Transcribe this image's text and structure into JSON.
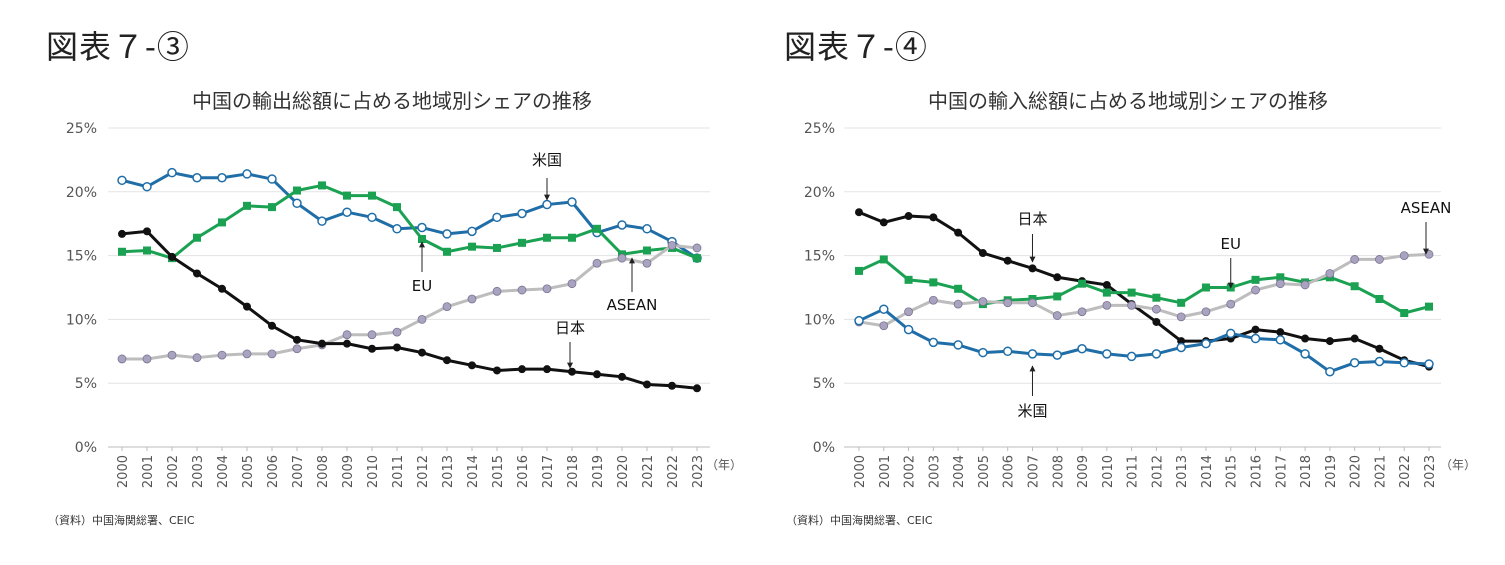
{
  "panels": [
    {
      "figure_label": "図表７-③",
      "source": "（資料）中国海関総署、CEIC",
      "chart_data": {
        "type": "line",
        "title": "中国の輸出総額に占める地域別シェアの推移",
        "x": [
          "2000",
          "2001",
          "2002",
          "2003",
          "2004",
          "2005",
          "2006",
          "2007",
          "2008",
          "2009",
          "2010",
          "2011",
          "2012",
          "2013",
          "2014",
          "2015",
          "2016",
          "2017",
          "2018",
          "2019",
          "2020",
          "2021",
          "2022",
          "2023"
        ],
        "x_unit": "（年）",
        "yticks": [
          "0%",
          "5%",
          "10%",
          "15%",
          "20%",
          "25%"
        ],
        "ylim": [
          0,
          25
        ],
        "grid": true,
        "series": [
          {
            "name": "米国",
            "color": "#1f6ea8",
            "marker": "circle-open",
            "values": [
              20.9,
              20.4,
              21.5,
              21.1,
              21.1,
              21.4,
              21.0,
              19.1,
              17.7,
              18.4,
              18.0,
              17.1,
              17.2,
              16.7,
              16.9,
              18.0,
              18.3,
              19.0,
              19.2,
              16.8,
              17.4,
              17.1,
              16.1,
              14.8
            ]
          },
          {
            "name": "EU",
            "color": "#1aa152",
            "marker": "square",
            "values": [
              15.3,
              15.4,
              14.8,
              16.4,
              17.6,
              18.9,
              18.8,
              20.1,
              20.5,
              19.7,
              19.7,
              18.8,
              16.3,
              15.3,
              15.7,
              15.6,
              16.0,
              16.4,
              16.4,
              17.1,
              15.1,
              15.4,
              15.6,
              14.8
            ]
          },
          {
            "name": "ASEAN",
            "color": "#bdbdbd",
            "marker": "circle-gray",
            "values": [
              6.9,
              6.9,
              7.2,
              7.0,
              7.2,
              7.3,
              7.3,
              7.7,
              8.0,
              8.8,
              8.8,
              9.0,
              10.0,
              11.0,
              11.6,
              12.2,
              12.3,
              12.4,
              12.8,
              14.4,
              14.8,
              14.4,
              15.8,
              15.6
            ]
          },
          {
            "name": "日本",
            "color": "#111111",
            "marker": "circle-filled",
            "values": [
              16.7,
              16.9,
              14.9,
              13.6,
              12.4,
              11.0,
              9.5,
              8.4,
              8.1,
              8.1,
              7.7,
              7.8,
              7.4,
              6.8,
              6.4,
              6.0,
              6.1,
              6.1,
              5.9,
              5.7,
              5.5,
              4.9,
              4.8,
              4.6
            ]
          }
        ],
        "annotations": [
          {
            "text": "米国",
            "year": "2017",
            "value": 19.0,
            "direction": "down"
          },
          {
            "text": "EU",
            "year": "2012",
            "value": 16.3,
            "direction": "up"
          },
          {
            "text": "ASEAN",
            "year": "2020",
            "value": 14.8,
            "direction": "up"
          },
          {
            "text": "日本",
            "year": "2018",
            "value": 5.9,
            "direction": "down"
          }
        ]
      }
    },
    {
      "figure_label": "図表７-④",
      "source": "（資料）中国海関総署、CEIC",
      "chart_data": {
        "type": "line",
        "title": "中国の輸入総額に占める地域別シェアの推移",
        "x": [
          "2000",
          "2001",
          "2002",
          "2003",
          "2004",
          "2005",
          "2006",
          "2007",
          "2008",
          "2009",
          "2010",
          "2011",
          "2012",
          "2013",
          "2014",
          "2015",
          "2016",
          "2017",
          "2018",
          "2019",
          "2020",
          "2021",
          "2022",
          "2023"
        ],
        "x_unit": "（年）",
        "yticks": [
          "0%",
          "5%",
          "10%",
          "15%",
          "20%",
          "25%"
        ],
        "ylim": [
          0,
          25
        ],
        "grid": true,
        "series": [
          {
            "name": "日本",
            "color": "#111111",
            "marker": "circle-filled",
            "values": [
              18.4,
              17.6,
              18.1,
              18.0,
              16.8,
              15.2,
              14.6,
              14.0,
              13.3,
              13.0,
              12.7,
              11.2,
              9.8,
              8.3,
              8.3,
              8.5,
              9.2,
              9.0,
              8.5,
              8.3,
              8.5,
              7.7,
              6.8,
              6.3
            ]
          },
          {
            "name": "EU",
            "color": "#1aa152",
            "marker": "square",
            "values": [
              13.8,
              14.7,
              13.1,
              12.9,
              12.4,
              11.2,
              11.5,
              11.6,
              11.8,
              12.8,
              12.1,
              12.1,
              11.7,
              11.3,
              12.5,
              12.5,
              13.1,
              13.3,
              12.9,
              13.3,
              12.6,
              11.6,
              10.5,
              11.0
            ]
          },
          {
            "name": "ASEAN",
            "color": "#bdbdbd",
            "marker": "circle-gray",
            "values": [
              9.8,
              9.5,
              10.6,
              11.5,
              11.2,
              11.4,
              11.3,
              11.3,
              10.3,
              10.6,
              11.1,
              11.1,
              10.8,
              10.2,
              10.6,
              11.2,
              12.3,
              12.8,
              12.7,
              13.6,
              14.7,
              14.7,
              15.0,
              15.1
            ]
          },
          {
            "name": "米国",
            "color": "#1f6ea8",
            "marker": "circle-open",
            "values": [
              9.9,
              10.8,
              9.2,
              8.2,
              8.0,
              7.4,
              7.5,
              7.3,
              7.2,
              7.7,
              7.3,
              7.1,
              7.3,
              7.8,
              8.1,
              8.9,
              8.5,
              8.4,
              7.3,
              5.9,
              6.6,
              6.7,
              6.6,
              6.5
            ]
          }
        ],
        "annotations": [
          {
            "text": "日本",
            "year": "2007",
            "value": 14.0,
            "direction": "down"
          },
          {
            "text": "EU",
            "year": "2015",
            "value": 12.5,
            "direction": "down"
          },
          {
            "text": "ASEAN",
            "year": "2023",
            "value": 15.1,
            "direction": "down"
          },
          {
            "text": "米国",
            "year": "2007",
            "value": 7.3,
            "direction": "up"
          }
        ]
      }
    }
  ]
}
